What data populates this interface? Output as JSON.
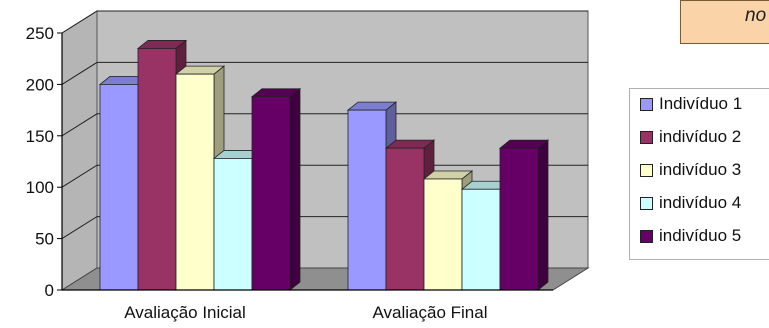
{
  "note": {
    "text": "no"
  },
  "chart_data": {
    "type": "bar",
    "categories": [
      "Avaliação Inicial",
      "Avaliação Final"
    ],
    "series": [
      {
        "name": "Indivíduo 1",
        "values": [
          200,
          175
        ],
        "color": "#9999ff"
      },
      {
        "name": "indivíduo 2",
        "values": [
          235,
          138
        ],
        "color": "#993366"
      },
      {
        "name": "indivíduo 3",
        "values": [
          210,
          108
        ],
        "color": "#ffffcc"
      },
      {
        "name": "indivíduo 4",
        "values": [
          128,
          98
        ],
        "color": "#ccffff"
      },
      {
        "name": "indivíduo 5",
        "values": [
          188,
          138
        ],
        "color": "#660066"
      }
    ],
    "ylim": [
      0,
      250
    ],
    "yticks": [
      0,
      50,
      100,
      150,
      200,
      250
    ],
    "grid": true,
    "legend": "right",
    "title": "",
    "xlabel": "",
    "ylabel": ""
  }
}
